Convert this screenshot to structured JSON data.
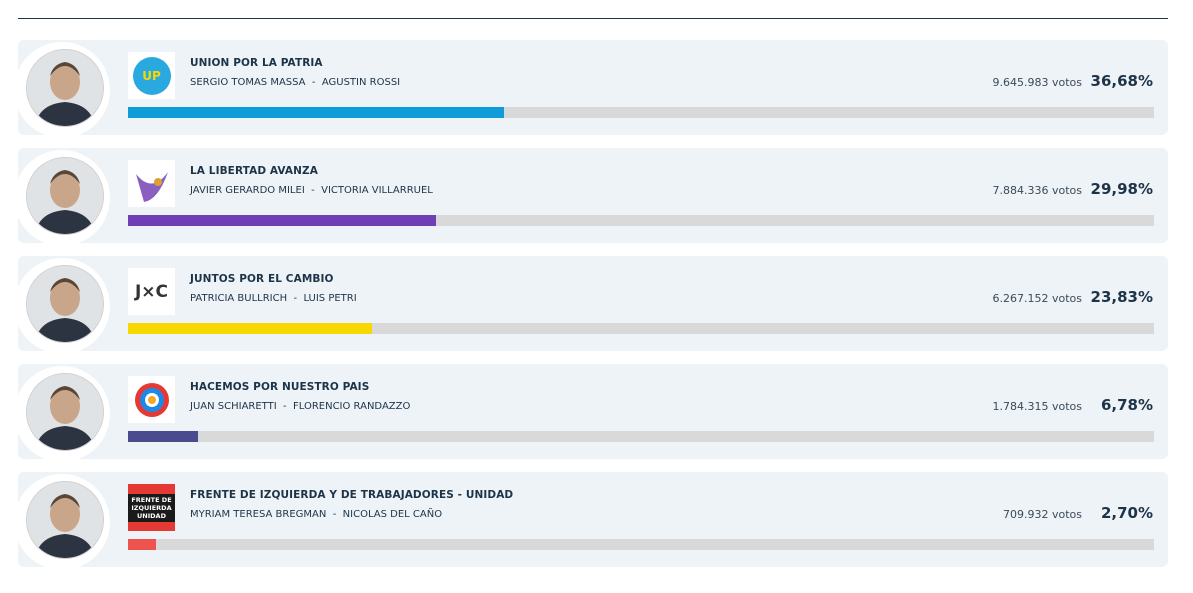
{
  "xlim": [
    0,
    100
  ],
  "results": [
    {
      "party": "UNION POR LA PATRIA",
      "candidates": "SERGIO TOMAS MASSA  -  AGUSTIN ROSSI",
      "votes": "9.645.983 votos",
      "pct": 36.68,
      "pct_label": "36,68%",
      "color": "#0f9bd7",
      "logo": "UP"
    },
    {
      "party": "LA LIBERTAD AVANZA",
      "candidates": "JAVIER GERARDO MILEI  -  VICTORIA VILLARRUEL",
      "votes": "7.884.336 votos",
      "pct": 29.98,
      "pct_label": "29,98%",
      "color": "#6f3fb5"
    },
    {
      "party": "JUNTOS POR EL CAMBIO",
      "candidates": "PATRICIA BULLRICH  -  LUIS PETRI",
      "votes": "6.267.152 votos",
      "pct": 23.83,
      "pct_label": "23,83%",
      "color": "#f7d800",
      "logo": "J×C"
    },
    {
      "party": "HACEMOS POR NUESTRO PAIS",
      "candidates": "JUAN SCHIARETTI  -  FLORENCIO RANDAZZO",
      "votes": "1.784.315 votos",
      "pct": 6.78,
      "pct_label": "6,78%",
      "color": "#4a4a8f"
    },
    {
      "party": "FRENTE DE IZQUIERDA Y DE TRABAJADORES - UNIDAD",
      "candidates": "MYRIAM TERESA BREGMAN  -  NICOLAS DEL CAÑO",
      "votes": "709.932 votos",
      "pct": 2.7,
      "pct_label": "2,70%",
      "color": "#ef5350",
      "logo": "FRENTE DE IZQUIERDA UNIDAD"
    }
  ]
}
